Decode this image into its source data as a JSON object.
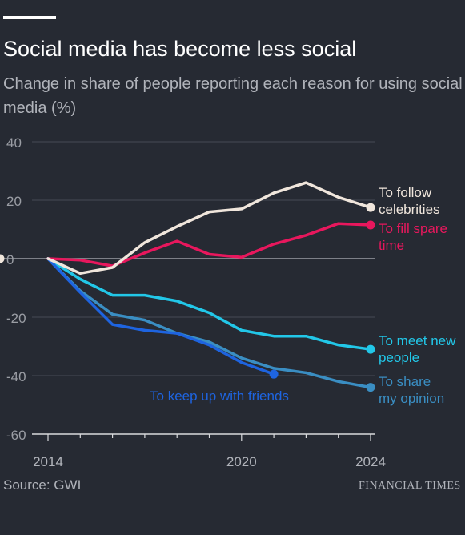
{
  "title": "Social media has become less social",
  "subtitle": "Change in share of people reporting each reason for using social media (%)",
  "source": "Source: GWI",
  "brand": "FINANCIAL TIMES",
  "chart_data": {
    "type": "line",
    "title": "Social media has become less social",
    "subtitle": "Change in share of people reporting each reason for using social media (%)",
    "ylim": [
      -60,
      40
    ],
    "xlim": [
      2014,
      2024
    ],
    "yticks": [
      40,
      20,
      0,
      -20,
      -40,
      -60
    ],
    "ytick_labels": [
      "40",
      "20",
      "0",
      "-20",
      "-40",
      "-60"
    ],
    "xticks": [
      2014,
      2020,
      2024
    ],
    "xtick_labels": [
      "2014",
      "2020",
      "2024"
    ],
    "grid": "horizontal",
    "x": [
      2014,
      2015,
      2016,
      2017,
      2018,
      2019,
      2020,
      2021,
      2022,
      2023,
      2024
    ],
    "series": [
      {
        "name": "To follow celebrities",
        "label_lines": [
          "To follow",
          "celebrities"
        ],
        "color": "#f0e6dc",
        "values": [
          0,
          -5,
          -3,
          5.5,
          11,
          16,
          17,
          22.5,
          26,
          21,
          17.5
        ]
      },
      {
        "name": "To fill spare time",
        "label_lines": [
          "To fill spare",
          "time"
        ],
        "color": "#e8175d",
        "values": [
          0,
          -0.5,
          -2.5,
          2,
          6,
          1.5,
          0.5,
          5,
          8,
          12,
          11.5
        ]
      },
      {
        "name": "To meet new people",
        "label_lines": [
          "To meet new",
          "people"
        ],
        "color": "#22c7e8",
        "values": [
          0,
          -7,
          -12.5,
          -12.5,
          -14.5,
          -18.5,
          -24.5,
          -26.5,
          -26.5,
          -29.5,
          -31
        ]
      },
      {
        "name": "To share my opinion",
        "label_lines": [
          "To share",
          "my opinion"
        ],
        "color": "#3a8ec3",
        "values": [
          0,
          -11,
          -19,
          -21,
          -25.5,
          -28.5,
          -34,
          -37.5,
          -39,
          -42,
          -44
        ]
      },
      {
        "name": "To keep up with friends",
        "label_lines": [
          "To keep up with friends"
        ],
        "color": "#1e64e0",
        "x": [
          2014,
          2015,
          2016,
          2017,
          2018,
          2019,
          2020,
          2021
        ],
        "values": [
          0,
          -11.5,
          -22.5,
          -24.5,
          -25.5,
          -29.5,
          -35.5,
          -39.5
        ]
      }
    ]
  }
}
